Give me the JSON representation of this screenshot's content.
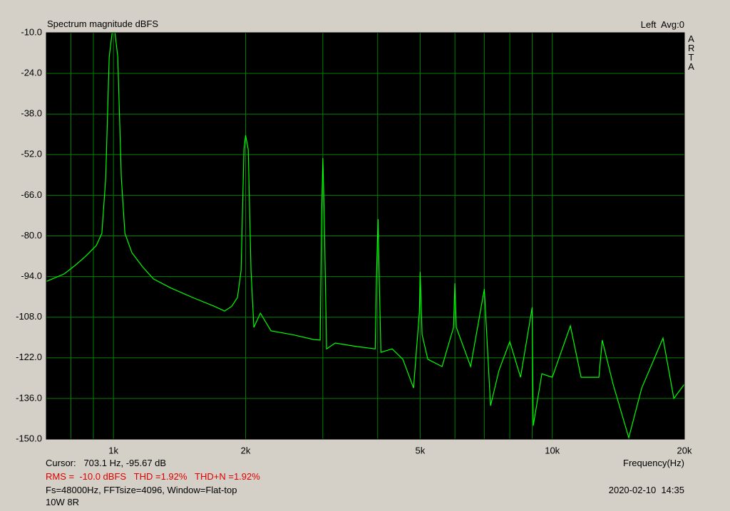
{
  "chart_data": {
    "type": "line",
    "title": "Spectrum magnitude dBFS",
    "channel_label": "Left  Avg:0",
    "brand": "ARTA",
    "x_label": "Frequency(Hz)",
    "log_x": true,
    "grid": true,
    "color": "#00ff00",
    "grid_color": "#008000",
    "x": [
      703.1,
      772,
      817,
      864,
      914,
      941,
      960,
      978,
      993,
      1008,
      1023,
      1042,
      1062,
      1102,
      1166,
      1233,
      1354,
      1515,
      1695,
      1792,
      1861,
      1917,
      1954,
      1983,
      2000,
      2028,
      2058,
      2089,
      2161,
      2286,
      2557,
      2861,
      2958,
      2981,
      3000,
      3022,
      3060,
      3201,
      3581,
      3948,
      3978,
      4008,
      4037,
      4068,
      4317,
      4565,
      4829,
      4977,
      5000,
      5051,
      5204,
      5609,
      5956,
      5999,
      6045,
      6515,
      7000,
      7233,
      7565,
      8002,
      8466,
      9000,
      9050,
      9470,
      10000,
      10995,
      11630,
      12770,
      13000,
      13760,
      14940,
      15990,
      17880,
      18920,
      20000
    ],
    "values": [
      -95.67,
      -93.1,
      -90.2,
      -87.0,
      -83.3,
      -79.1,
      -60.0,
      -18.3,
      -10.0,
      -10.0,
      -18.3,
      -60.0,
      -79.1,
      -85.8,
      -90.7,
      -94.8,
      -98.0,
      -101.2,
      -104.2,
      -105.9,
      -104.2,
      -101.2,
      -91.9,
      -50.2,
      -45.3,
      -50.2,
      -91.9,
      -111.5,
      -106.6,
      -112.7,
      -114.0,
      -115.7,
      -115.9,
      -72.3,
      -53.2,
      -72.3,
      -118.9,
      -116.9,
      -118.1,
      -118.9,
      -91.9,
      -74.2,
      -96.8,
      -120.1,
      -118.9,
      -122.5,
      -132.4,
      -106.6,
      -92.4,
      -114.0,
      -122.5,
      -125.0,
      -111.5,
      -96.3,
      -111.5,
      -125.0,
      -98.3,
      -138.5,
      -126.2,
      -116.4,
      -128.7,
      -104.6,
      -145.4,
      -127.5,
      -128.7,
      -111.0,
      -128.7,
      -128.7,
      -115.9,
      -131.1,
      -149.5,
      -132.4,
      -115.2,
      -136.0,
      -131.1
    ],
    "xlim": [
      703.1,
      20000
    ],
    "xticks": [
      {
        "value": 1000,
        "label": "1k"
      },
      {
        "value": 2000,
        "label": "2k"
      },
      {
        "value": 5000,
        "label": "5k"
      },
      {
        "value": 10000,
        "label": "10k"
      },
      {
        "value": 20000,
        "label": "20k"
      }
    ],
    "x_minor_grid": [
      800,
      900,
      3000,
      4000,
      6000,
      7000,
      8000,
      9000
    ],
    "ylim": [
      -150,
      -10
    ],
    "yticks": [
      {
        "value": -10,
        "label": "-10.0"
      },
      {
        "value": -24,
        "label": "-24.0"
      },
      {
        "value": -38,
        "label": "-38.0"
      },
      {
        "value": -52,
        "label": "-52.0"
      },
      {
        "value": -66,
        "label": "-66.0"
      },
      {
        "value": -80,
        "label": "-80.0"
      },
      {
        "value": -94,
        "label": "-94.0"
      },
      {
        "value": -108,
        "label": "-108.0"
      },
      {
        "value": -122,
        "label": "-122.0"
      },
      {
        "value": -136,
        "label": "-136.0"
      },
      {
        "value": -150,
        "label": "-150.0"
      }
    ]
  },
  "status": {
    "cursor": "Cursor:   703.1 Hz, -95.67 dB",
    "measurements": "RMS =  -10.0 dBFS   THD =1.92%   THD+N =1.92%",
    "settings": "Fs=48000Hz, FFTsize=4096, Window=Flat-top",
    "timestamp": "2020-02-10  14:35",
    "note": "10W 8R"
  }
}
